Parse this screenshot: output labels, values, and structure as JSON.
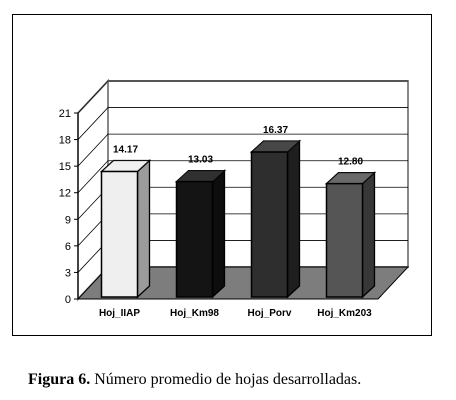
{
  "chart_data": {
    "type": "bar",
    "title": "",
    "xlabel": "",
    "ylabel": "",
    "categories": [
      "Hoj_IIAP",
      "Hoj_Km98",
      "Hoj_Porv",
      "Hoj_Km203"
    ],
    "values": [
      14.17,
      13.03,
      16.37,
      12.8
    ],
    "data_labels": [
      "14.17",
      "13.03",
      "16.37",
      "12.80"
    ],
    "ylim": [
      0,
      21
    ],
    "yticks": [
      "0",
      "3",
      "6",
      "9",
      "12",
      "15",
      "18",
      "21"
    ],
    "grid": true,
    "legend": "none",
    "style": "3d-bars",
    "bar_colors": [
      "#efefef",
      "#141414",
      "#2e2e2e",
      "#555555"
    ],
    "floor_color": "#7d7d7d",
    "wall_color": "#ffffff",
    "frame_color": "#888888"
  },
  "caption": {
    "label": "Figura 6.",
    "text": "Número promedio de hojas desarrolladas."
  }
}
